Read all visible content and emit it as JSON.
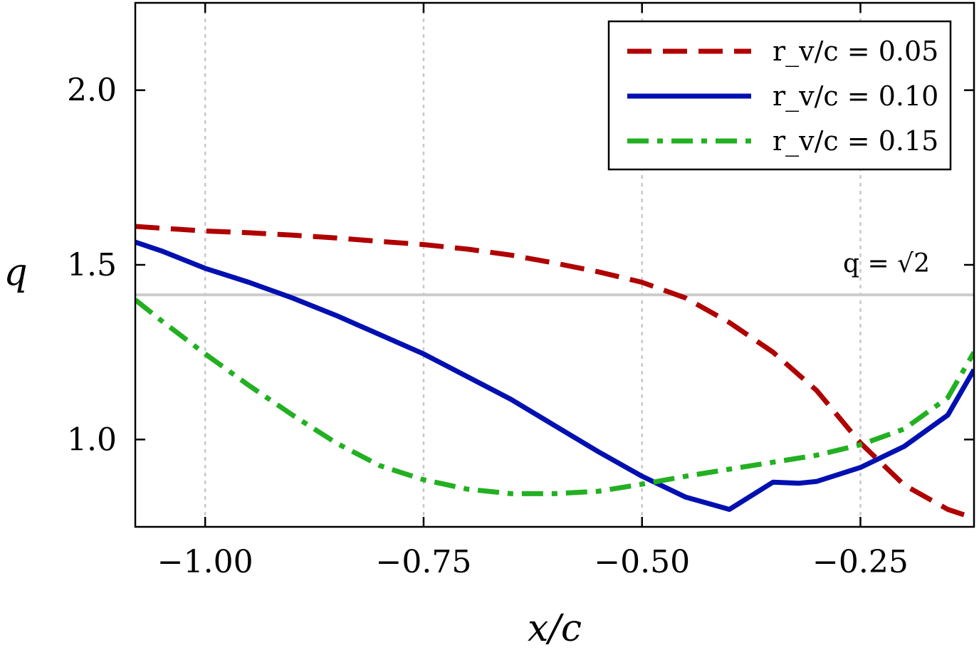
{
  "chart_data": {
    "type": "line",
    "xlabel": "x/c",
    "ylabel": "q",
    "xlim": [
      -1.08,
      -0.12
    ],
    "ylim": [
      0.75,
      2.25
    ],
    "xticks": [
      -1.0,
      -0.75,
      -0.5,
      -0.25
    ],
    "xtick_labels": [
      "−1.00",
      "−0.75",
      "−0.50",
      "−0.25"
    ],
    "yticks": [
      1.0,
      1.5,
      2.0
    ],
    "ytick_labels": [
      "1.0",
      "1.5",
      "2.0"
    ],
    "grid": "vertical-dotted",
    "legend_position": "top-right",
    "reference_line": {
      "y": 1.4142,
      "label": "q = √2",
      "color": "#cccccc"
    },
    "series": [
      {
        "name": "r_v/c = 0.05",
        "color": "#b00000",
        "style": "dashed",
        "x": [
          -1.08,
          -1.05,
          -1.0,
          -0.95,
          -0.9,
          -0.85,
          -0.8,
          -0.75,
          -0.7,
          -0.65,
          -0.6,
          -0.55,
          -0.5,
          -0.45,
          -0.4,
          -0.35,
          -0.3,
          -0.25,
          -0.2,
          -0.15,
          -0.12
        ],
        "y": [
          1.61,
          1.605,
          1.597,
          1.592,
          1.585,
          1.577,
          1.567,
          1.558,
          1.545,
          1.528,
          1.505,
          1.48,
          1.45,
          1.405,
          1.335,
          1.25,
          1.14,
          0.99,
          0.87,
          0.8,
          0.775
        ]
      },
      {
        "name": "r_v/c = 0.10",
        "color": "#0010b0",
        "style": "solid",
        "x": [
          -1.08,
          -1.05,
          -1.0,
          -0.95,
          -0.9,
          -0.85,
          -0.8,
          -0.75,
          -0.7,
          -0.65,
          -0.6,
          -0.55,
          -0.5,
          -0.45,
          -0.4,
          -0.35,
          -0.32,
          -0.3,
          -0.25,
          -0.2,
          -0.15,
          -0.12
        ],
        "y": [
          1.565,
          1.54,
          1.49,
          1.45,
          1.405,
          1.355,
          1.3,
          1.245,
          1.18,
          1.115,
          1.04,
          0.965,
          0.895,
          0.835,
          0.8,
          0.878,
          0.875,
          0.88,
          0.92,
          0.98,
          1.07,
          1.2
        ]
      },
      {
        "name": "r_v/c = 0.15",
        "color": "#22b022",
        "style": "dashdot",
        "x": [
          -1.08,
          -1.05,
          -1.0,
          -0.95,
          -0.9,
          -0.85,
          -0.8,
          -0.75,
          -0.7,
          -0.65,
          -0.6,
          -0.55,
          -0.5,
          -0.45,
          -0.4,
          -0.35,
          -0.3,
          -0.25,
          -0.2,
          -0.15,
          -0.12
        ],
        "y": [
          1.4,
          1.34,
          1.245,
          1.155,
          1.07,
          0.99,
          0.925,
          0.885,
          0.858,
          0.845,
          0.845,
          0.852,
          0.872,
          0.895,
          0.915,
          0.935,
          0.955,
          0.985,
          1.03,
          1.12,
          1.25
        ]
      }
    ]
  }
}
